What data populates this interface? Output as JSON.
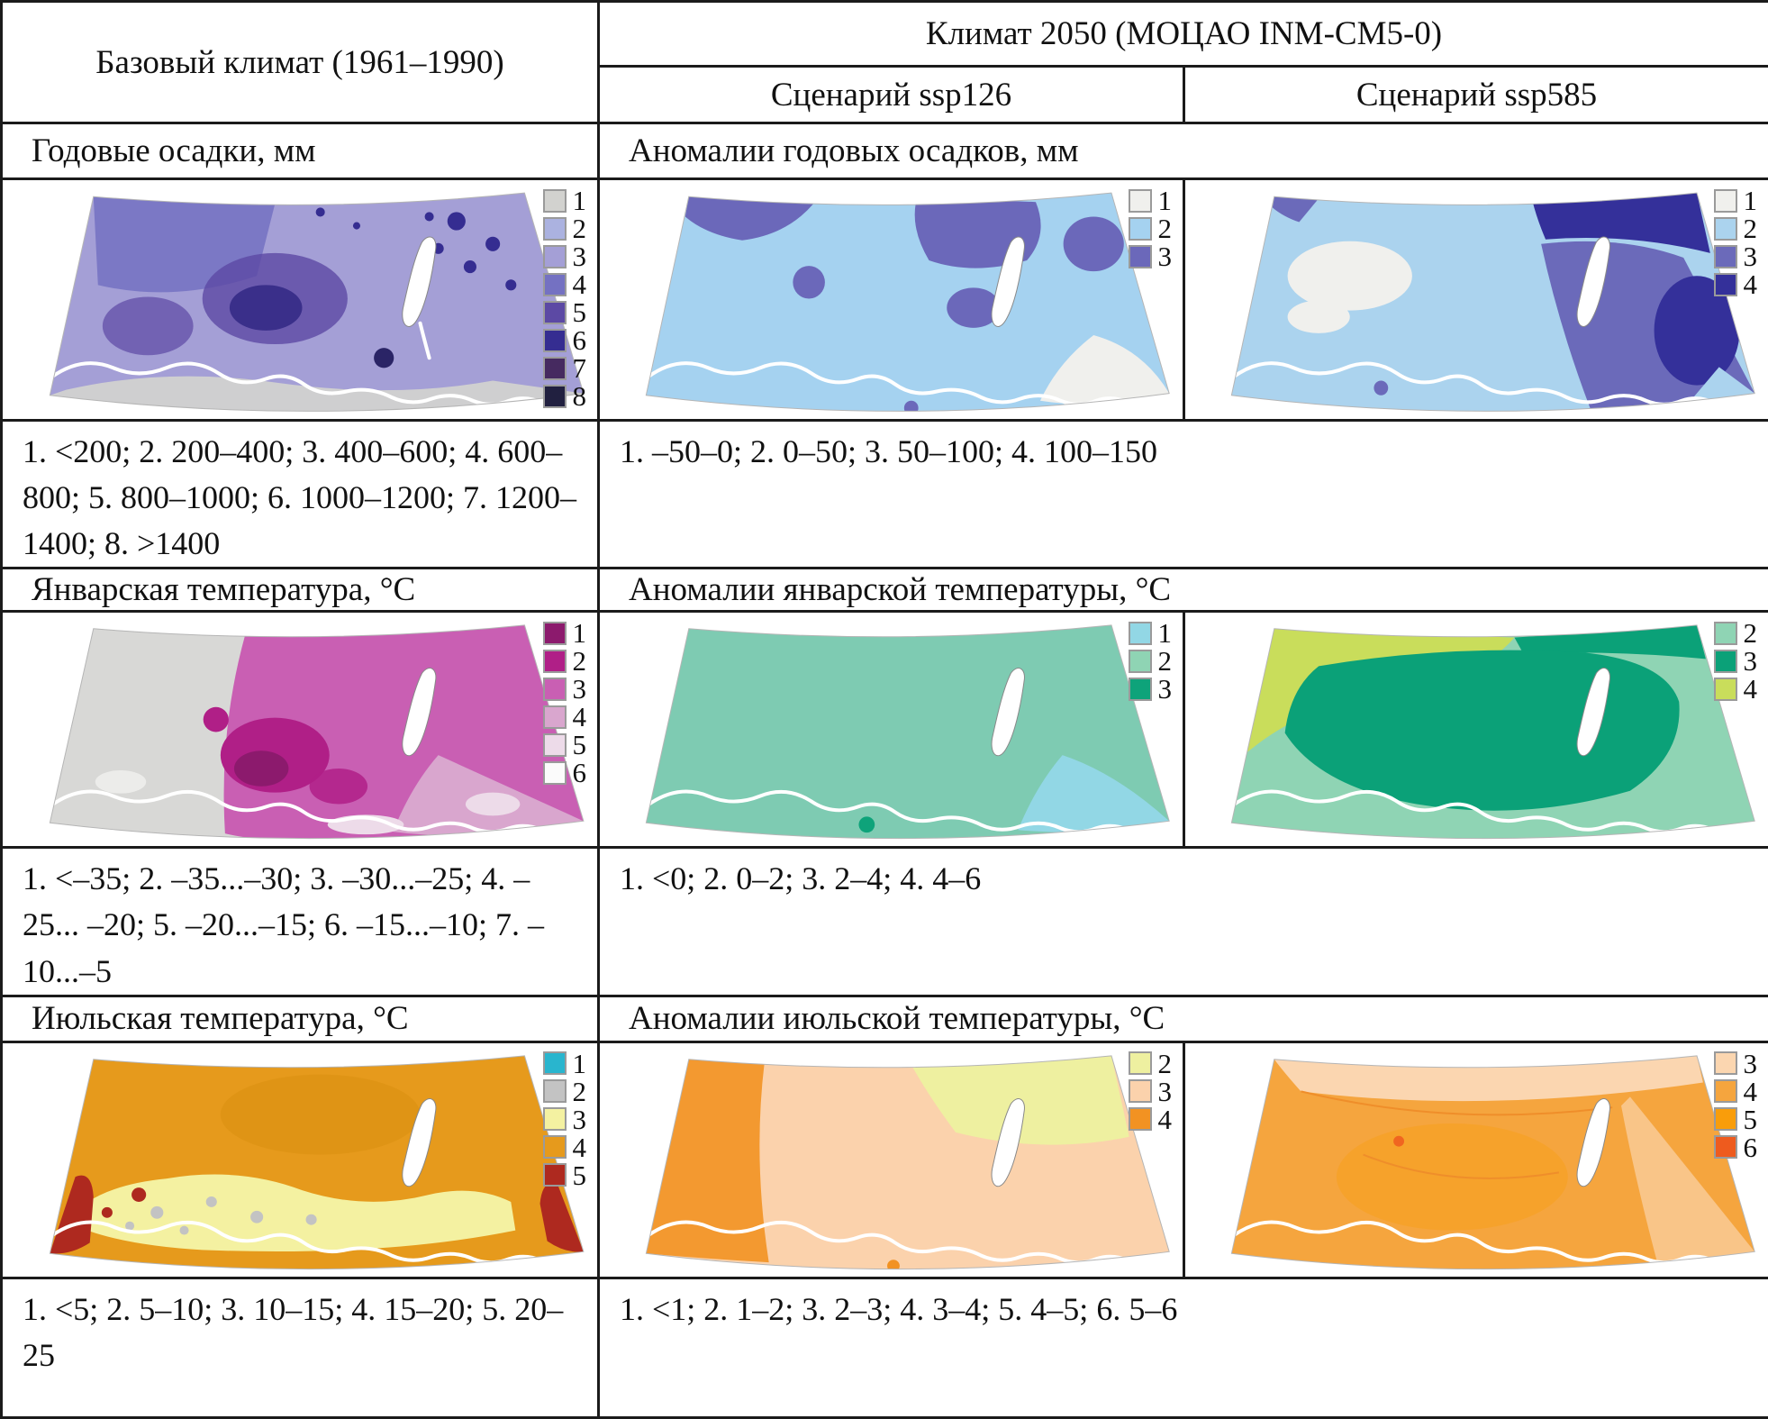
{
  "header": {
    "base_climate": "Базовый климат (1961–1990)",
    "climate_2050": "Климат 2050 (МОЦАО INM-CM5-0)",
    "scenario_1": "Сценарий ssp126",
    "scenario_2": "Сценарий ssp585"
  },
  "sections": [
    {
      "base_title": "Годовые осадки, мм",
      "anomaly_title": "Аномалии годовых осадков, мм",
      "base_legend_text": "1. <200; 2. 200–400; 3. 400–600; 4. 600–800; 5. 800–1000; 6. 1000–1200; 7. 1200–1400; 8. >1400",
      "anomaly_legend_text": "1. –50–0; 2. 0–50; 3. 50–100; 4. 100–150",
      "maps": [
        {
          "name": "annual-precipitation-base",
          "legend": [
            {
              "label": "1",
              "color": "#d2d2cf"
            },
            {
              "label": "2",
              "color": "#abb2e0"
            },
            {
              "label": "3",
              "color": "#a49fd6"
            },
            {
              "label": "4",
              "color": "#7471c2"
            },
            {
              "label": "5",
              "color": "#5c49a4"
            },
            {
              "label": "6",
              "color": "#352d91"
            },
            {
              "label": "7",
              "color": "#462a60"
            },
            {
              "label": "8",
              "color": "#212040"
            }
          ]
        },
        {
          "name": "precip-anomaly-ssp126",
          "legend": [
            {
              "label": "1",
              "color": "#f0f0ed"
            },
            {
              "label": "2",
              "color": "#a5d2f0"
            },
            {
              "label": "3",
              "color": "#6b68ba"
            }
          ]
        },
        {
          "name": "precip-anomaly-ssp585",
          "legend": [
            {
              "label": "1",
              "color": "#f0f0ed"
            },
            {
              "label": "2",
              "color": "#abd3ee"
            },
            {
              "label": "3",
              "color": "#6b6aba"
            },
            {
              "label": "4",
              "color": "#34309a"
            }
          ]
        }
      ]
    },
    {
      "base_title": "Январская температура, °С",
      "anomaly_title": "Аномалии январской температуры, °С",
      "base_legend_text": "1. <–35; 2. –35...–30; 3. –30...–25; 4. –25... –20; 5. –20...–15; 6. –15...–10; 7. –10...–5",
      "anomaly_legend_text": "1. <0; 2. 0–2; 3. 2–4; 4. 4–6",
      "maps": [
        {
          "name": "january-temperature-base",
          "legend": [
            {
              "label": "1",
              "color": "#8c1a6d"
            },
            {
              "label": "2",
              "color": "#b01f87"
            },
            {
              "label": "3",
              "color": "#c95fb3"
            },
            {
              "label": "4",
              "color": "#d9a6ce"
            },
            {
              "label": "5",
              "color": "#eddbe9"
            },
            {
              "label": "6",
              "color": "#fbfbfb"
            }
          ]
        },
        {
          "name": "january-anomaly-ssp126",
          "legend": [
            {
              "label": "1",
              "color": "#92d7e5"
            },
            {
              "label": "2",
              "color": "#8fd4b4"
            },
            {
              "label": "3",
              "color": "#0ea37a"
            }
          ]
        },
        {
          "name": "january-anomaly-ssp585",
          "legend": [
            {
              "label": "2",
              "color": "#8fd4b4"
            },
            {
              "label": "3",
              "color": "#0ba178"
            },
            {
              "label": "4",
              "color": "#c9dd5b"
            }
          ]
        }
      ]
    },
    {
      "base_title": "Июльская температура, °С",
      "anomaly_title": "Аномалии июльской температуры, °С",
      "base_legend_text": "1. <5; 2. 5–10; 3. 10–15; 4. 15–20; 5. 20–25",
      "anomaly_legend_text": "1. <1; 2. 1–2; 3. 2–3; 4. 3–4; 5. 4–5; 6. 5–6",
      "maps": [
        {
          "name": "july-temperature-base",
          "legend": [
            {
              "label": "1",
              "color": "#29b5ce"
            },
            {
              "label": "2",
              "color": "#c3c3c3"
            },
            {
              "label": "3",
              "color": "#f4f1a1"
            },
            {
              "label": "4",
              "color": "#e69a1c"
            },
            {
              "label": "5",
              "color": "#ae291f"
            }
          ]
        },
        {
          "name": "july-anomaly-ssp126",
          "legend": [
            {
              "label": "2",
              "color": "#eef0a0"
            },
            {
              "label": "3",
              "color": "#fbd2ac"
            },
            {
              "label": "4",
              "color": "#f29222"
            }
          ]
        },
        {
          "name": "july-anomaly-ssp585",
          "legend": [
            {
              "label": "3",
              "color": "#fbd6b0"
            },
            {
              "label": "4",
              "color": "#f5a53e"
            },
            {
              "label": "5",
              "color": "#f99d0a"
            },
            {
              "label": "6",
              "color": "#ee5b1e"
            }
          ]
        }
      ]
    }
  ]
}
